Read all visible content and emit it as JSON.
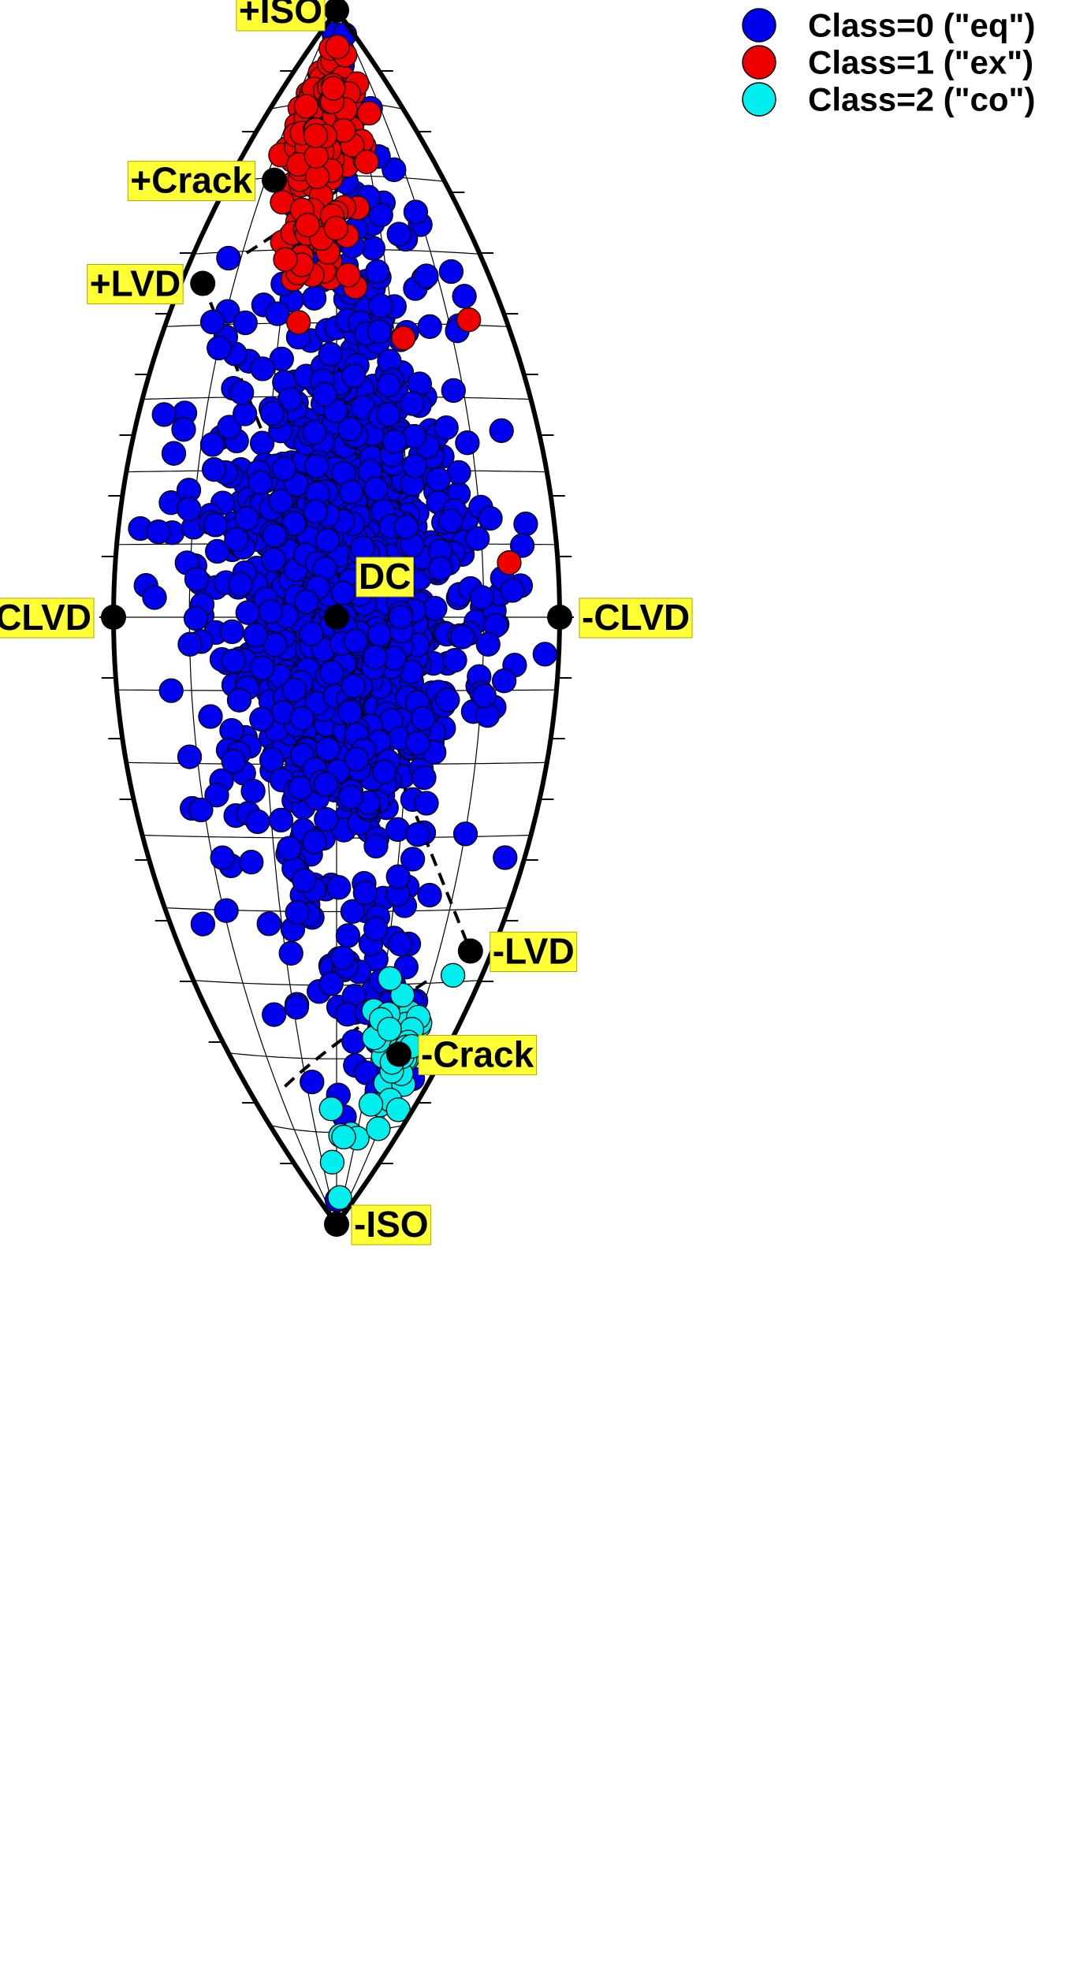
{
  "chart_data": {
    "type": "scatter",
    "projection": "Hudson lune (source-type plot)",
    "reference_points": [
      {
        "name": "+ISO",
        "u": 0,
        "v": 1
      },
      {
        "name": "-ISO",
        "u": 0,
        "v": -1
      },
      {
        "name": "DC",
        "u": 0,
        "v": 0
      },
      {
        "name": "+CLVD",
        "u": -1,
        "v": 0
      },
      {
        "name": "-CLVD",
        "u": 1,
        "v": 0
      },
      {
        "name": "+LVD",
        "u": -0.86,
        "v": 0.55
      },
      {
        "name": "-LVD",
        "u": 0.86,
        "v": -0.55
      },
      {
        "name": "+Crack",
        "u": -0.58,
        "v": 0.72
      },
      {
        "name": "-Crack",
        "u": 0.58,
        "v": -0.72
      }
    ],
    "legend": {
      "placement": "top-right",
      "entries": [
        {
          "label": "Class=0 (\"eq\")",
          "color": "#0000ee"
        },
        {
          "label": "Class=1 (\"ex\")",
          "color": "#ee0000"
        },
        {
          "label": "Class=2 (\"co\")",
          "color": "#00eeee"
        }
      ]
    },
    "series": [
      {
        "name": "Class=0 (\"eq\")",
        "color": "#0000ee",
        "clusters": [
          {
            "u": 0.02,
            "v": 0.05,
            "su": 0.26,
            "sv": 0.16,
            "count": 880
          },
          {
            "u": 0.02,
            "v": -0.01,
            "su": 0.36,
            "sv": 0.35,
            "count": 420
          },
          {
            "u": 0.3,
            "v": 0.53,
            "su": 0.2,
            "sv": 0.1,
            "count": 45
          },
          {
            "u": 0.3,
            "v": -0.62,
            "su": 0.2,
            "sv": 0.1,
            "count": 30
          }
        ]
      },
      {
        "name": "Class=1 (\"ex\")",
        "color": "#ee0000",
        "clusters": [
          {
            "u": -0.28,
            "v": 0.8,
            "su": 0.14,
            "sv": 0.05,
            "count": 115
          },
          {
            "u": 0.05,
            "v": 0.83,
            "su": 0.2,
            "sv": 0.06,
            "count": 55
          },
          {
            "u": -0.16,
            "v": 0.63,
            "su": 0.12,
            "sv": 0.06,
            "count": 40
          }
        ],
        "outliers": [
          {
            "u": 0.78,
            "v": 0.49
          },
          {
            "u": 0.78,
            "v": 0.09
          },
          {
            "u": 0.38,
            "v": 0.46
          }
        ]
      },
      {
        "name": "Class=2 (\"co\")",
        "color": "#00eeee",
        "clusters": [
          {
            "u": 0.54,
            "v": -0.72,
            "su": 0.11,
            "sv": 0.05,
            "count": 38
          },
          {
            "u": 0.35,
            "v": -0.86,
            "su": 0.18,
            "sv": 0.06,
            "count": 8
          }
        ],
        "outliers": [
          {
            "u": 0.8,
            "v": -0.59
          },
          {
            "u": -0.07,
            "v": -0.81
          }
        ]
      }
    ],
    "dashed_curves": [
      {
        "name": "+Crack to +LVD boundary",
        "points": [
          [
            -0.63,
            0.6
          ],
          [
            0.12,
            0.71
          ],
          [
            0.64,
            0.78
          ]
        ]
      },
      {
        "name": "-LVD to -Crack boundary",
        "points": [
          [
            0.63,
            -0.6
          ],
          [
            -0.12,
            -0.71
          ],
          [
            -0.64,
            -0.78
          ]
        ]
      },
      {
        "name": "+LVD to -LVD line",
        "points": [
          [
            -0.86,
            0.55
          ],
          [
            0.86,
            -0.55
          ]
        ]
      }
    ],
    "grid": true
  }
}
